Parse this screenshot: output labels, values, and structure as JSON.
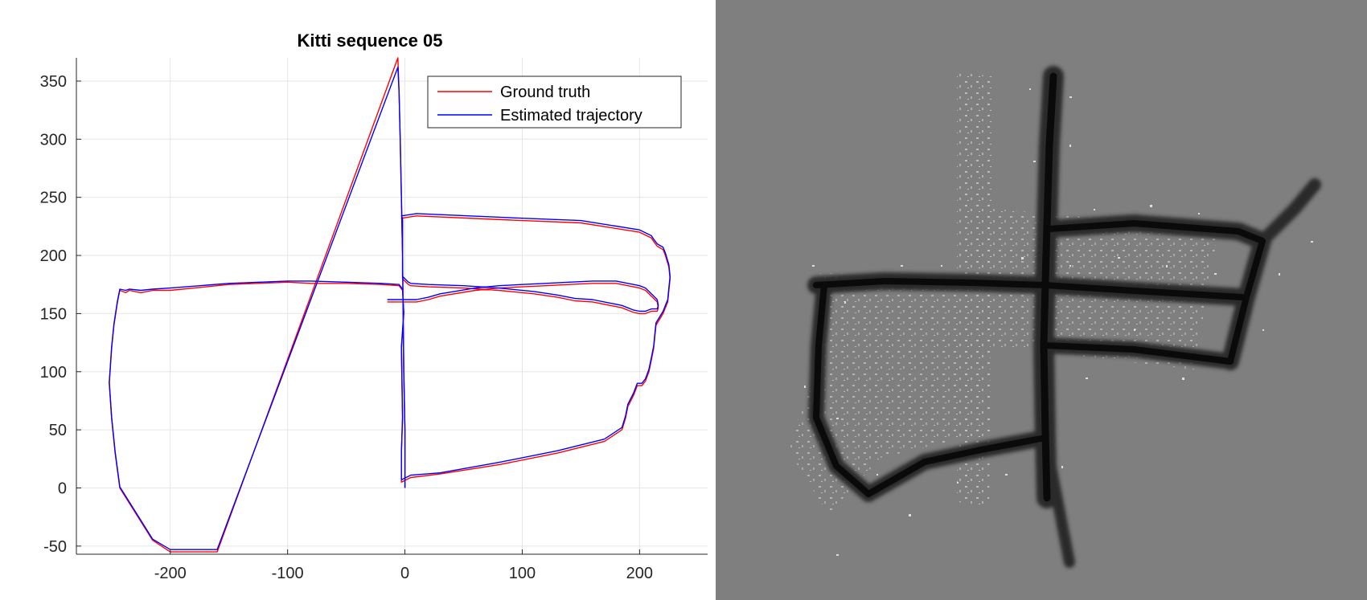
{
  "chart_data": {
    "type": "line",
    "title": "Kitti sequence 05",
    "xlabel": "",
    "ylabel": "",
    "xlim": [
      -280,
      258
    ],
    "ylim": [
      -57,
      370
    ],
    "xticks": [
      -200,
      -100,
      0,
      100,
      200
    ],
    "yticks": [
      -50,
      0,
      50,
      100,
      150,
      200,
      250,
      300,
      350
    ],
    "xtick_labels": [
      "-200",
      "-100",
      "0",
      "100",
      "200"
    ],
    "ytick_labels": [
      "-50",
      "0",
      "50",
      "100",
      "150",
      "200",
      "250",
      "300",
      "350"
    ],
    "grid": true,
    "legend_position": "top-right",
    "series": [
      {
        "name": "Ground truth",
        "color": "#ff0000",
        "x": [
          0,
          0,
          -1,
          -2,
          -3,
          -4,
          -5,
          -6,
          -160,
          -200,
          -215,
          -243,
          -247,
          -250,
          -252,
          -250,
          -248,
          -245,
          -243,
          -238,
          -235,
          -225,
          -215,
          -200,
          -150,
          -100,
          -80,
          -50,
          -20,
          -5,
          -2,
          -1,
          -3,
          -2,
          -3,
          -3,
          -3,
          5,
          30,
          80,
          130,
          170,
          185,
          188,
          190,
          195,
          198,
          200,
          202,
          205,
          208,
          210,
          212,
          213,
          214,
          220,
          224,
          225,
          226,
          225,
          222,
          220,
          215,
          212,
          210,
          200,
          150,
          100,
          10,
          -3,
          -2,
          -2,
          -2,
          -2,
          -2,
          3,
          5,
          20,
          50,
          80,
          110,
          130,
          145,
          160,
          175,
          180,
          185,
          190,
          195,
          200,
          205,
          210,
          213,
          215,
          216,
          215,
          210,
          205,
          200,
          190,
          180,
          160,
          140,
          120,
          100,
          80,
          60,
          30,
          20,
          10,
          0,
          -5,
          -10,
          -15
        ],
        "y": [
          0,
          50,
          100,
          200,
          250,
          300,
          340,
          370,
          -55,
          -55,
          -45,
          0,
          30,
          60,
          90,
          120,
          140,
          160,
          170,
          168,
          170,
          168,
          170,
          170,
          175,
          177,
          176,
          176,
          175,
          174,
          170,
          150,
          120,
          60,
          30,
          10,
          5,
          9,
          12,
          20,
          30,
          40,
          50,
          60,
          70,
          80,
          88,
          88,
          88,
          92,
          100,
          110,
          120,
          130,
          140,
          150,
          160,
          170,
          180,
          190,
          200,
          205,
          208,
          212,
          215,
          220,
          228,
          230,
          234,
          232,
          230,
          220,
          210,
          200,
          180,
          175,
          174,
          173,
          172,
          170,
          167,
          164,
          161,
          160,
          157,
          156,
          155,
          153,
          151,
          150,
          150,
          152,
          152,
          152,
          155,
          160,
          165,
          170,
          172,
          174,
          176,
          176,
          175,
          174,
          173,
          172,
          170,
          165,
          162,
          160,
          160,
          160,
          160,
          160
        ]
      },
      {
        "name": "Estimated trajectory",
        "color": "#0000ff",
        "x": [
          0,
          0,
          -1,
          -2,
          -3,
          -4,
          -5,
          -6,
          -160,
          -200,
          -215,
          -243,
          -247,
          -250,
          -252,
          -250,
          -248,
          -245,
          -243,
          -238,
          -235,
          -225,
          -215,
          -200,
          -150,
          -100,
          -80,
          -50,
          -20,
          -5,
          -2,
          -1,
          -3,
          -2,
          -3,
          -3,
          -3,
          5,
          30,
          80,
          130,
          170,
          185,
          188,
          190,
          195,
          198,
          200,
          202,
          205,
          208,
          210,
          212,
          213,
          214,
          220,
          224,
          225,
          226,
          225,
          222,
          220,
          215,
          212,
          210,
          200,
          150,
          100,
          10,
          -3,
          -2,
          -2,
          -2,
          -2,
          -2,
          3,
          5,
          20,
          50,
          80,
          110,
          130,
          145,
          160,
          175,
          180,
          185,
          190,
          195,
          200,
          205,
          210,
          213,
          215,
          216,
          215,
          210,
          205,
          200,
          190,
          180,
          160,
          140,
          120,
          100,
          80,
          60,
          30,
          20,
          10,
          0,
          -5,
          -10,
          -15
        ],
        "y": [
          0,
          50,
          100,
          200,
          250,
          300,
          340,
          362,
          -53,
          -53,
          -44,
          1,
          31,
          61,
          91,
          121,
          141,
          161,
          171,
          170,
          171,
          170,
          171,
          172,
          176,
          178,
          178,
          177,
          176,
          175,
          171,
          151,
          121,
          61,
          31,
          11,
          7,
          11,
          13,
          22,
          32,
          42,
          52,
          62,
          72,
          82,
          90,
          90,
          90,
          94,
          102,
          112,
          122,
          132,
          142,
          152,
          162,
          172,
          182,
          192,
          202,
          207,
          210,
          214,
          217,
          222,
          230,
          232,
          236,
          234,
          232,
          222,
          212,
          202,
          182,
          177,
          176,
          175,
          174,
          172,
          169,
          166,
          163,
          162,
          159,
          158,
          157,
          155,
          153,
          152,
          152,
          154,
          154,
          154,
          157,
          162,
          167,
          172,
          174,
          176,
          178,
          178,
          177,
          176,
          175,
          174,
          172,
          167,
          164,
          162,
          162,
          162,
          162,
          162
        ]
      }
    ]
  }
}
